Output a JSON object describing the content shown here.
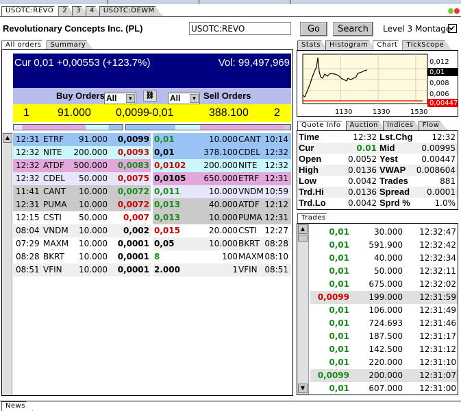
{
  "window_tabs": [
    "USOTC:REVO",
    "2",
    "3",
    "4",
    "USOTC:DEWM"
  ],
  "company": "Revolutionary Concepts Inc. (PL)",
  "symbol_input": "USOTC:REVO",
  "buttons": {
    "go": "Go",
    "search": "Search"
  },
  "level3": {
    "label": "Level 3 Montage",
    "checked": true
  },
  "left_tabs": [
    "All orders",
    "Summary"
  ],
  "header": {
    "cur": "Cur 0,01 +0,00553 (+123.7%)",
    "vol": "Vol: 99,497,969",
    "buy_label": "Buy Orders",
    "sell_label": "Sell Orders",
    "buy_filter": "All",
    "sell_filter": "All"
  },
  "best": {
    "buy_count": "1",
    "buy_size": "91.000",
    "buy_price": "0,0099",
    "sell_price": "-0,01",
    "sell_size": "388.100",
    "sell_count": "2"
  },
  "buy_orders": [
    {
      "time": "12:31",
      "mm": "ETRF",
      "size": "91.000",
      "price": "0,0099",
      "c": "k",
      "bg": "#99c3f5"
    },
    {
      "time": "12:32",
      "mm": "NITE",
      "size": "200.000",
      "price": "0,0093",
      "c": "r",
      "bg": "#c9f7fb"
    },
    {
      "time": "12:32",
      "mm": "ATDF",
      "size": "500.000",
      "price": "0,0083",
      "c": "g",
      "bg": "#e2a8dc"
    },
    {
      "time": "12:32",
      "mm": "CDEL",
      "size": "50.000",
      "price": "0,0075",
      "c": "r",
      "bg": "#e6e6fa"
    },
    {
      "time": "11:41",
      "mm": "CANT",
      "size": "10.000",
      "price": "0,0072",
      "c": "g",
      "bg": "#cacaca"
    },
    {
      "time": "12:31",
      "mm": "PUMA",
      "size": "10.000",
      "price": "0,0072",
      "c": "r",
      "bg": "#cacaca"
    },
    {
      "time": "12:15",
      "mm": "CSTI",
      "size": "50.000",
      "price": "0,007",
      "c": "r",
      "bg": "#ffffff"
    },
    {
      "time": "08:04",
      "mm": "VNDM",
      "size": "10.000",
      "price": "0,002",
      "c": "k",
      "bg": "#efefef"
    },
    {
      "time": "07:29",
      "mm": "MAXM",
      "size": "10.000",
      "price": "0,0001",
      "c": "k",
      "bg": "#ffffff"
    },
    {
      "time": "08:28",
      "mm": "BKRT",
      "size": "10.000",
      "price": "0,0001",
      "c": "k",
      "bg": "#ffffff"
    },
    {
      "time": "08:51",
      "mm": "VFIN",
      "size": "10.000",
      "price": "0,0001",
      "c": "k",
      "bg": "#efefef"
    }
  ],
  "sell_orders": [
    {
      "price": "0,01",
      "c": "g",
      "size": "10.000",
      "mm": "CANT",
      "time": "10:14",
      "bg": "#99c3f5"
    },
    {
      "price": "0,01",
      "c": "k",
      "size": "378.100",
      "mm": "CDEL",
      "time": "12:32",
      "bg": "#99c3f5"
    },
    {
      "price": "0,0102",
      "c": "r",
      "size": "200.000",
      "mm": "NITE",
      "time": "12:32",
      "bg": "#c9f7fb"
    },
    {
      "price": "0,0105",
      "c": "k",
      "size": "650.000",
      "mm": "ETRF",
      "time": "12:31",
      "bg": "#e2a8dc"
    },
    {
      "price": "0,011",
      "c": "g",
      "size": "10.000",
      "mm": "VNDM",
      "time": "10:59",
      "bg": "#e6e6fa"
    },
    {
      "price": "0,013",
      "c": "g",
      "size": "40.000",
      "mm": "ATDF",
      "time": "12:12",
      "bg": "#cacaca"
    },
    {
      "price": "0,013",
      "c": "g",
      "size": "10.000",
      "mm": "PUMA",
      "time": "12:31",
      "bg": "#cacaca"
    },
    {
      "price": "0,015",
      "c": "r",
      "size": "20.000",
      "mm": "CSTI",
      "time": "12:27",
      "bg": "#ffffff"
    },
    {
      "price": "0,05",
      "c": "k",
      "size": "10.000",
      "mm": "BKRT",
      "time": "08:28",
      "bg": "#efefef"
    },
    {
      "price": "8",
      "c": "g",
      "size": "100",
      "mm": "MAXM",
      "time": "08:10",
      "bg": "#ffffff"
    },
    {
      "price": "2.000",
      "c": "k",
      "size": "1",
      "mm": "VFIN",
      "time": "08:51",
      "bg": "#efefef"
    }
  ],
  "right_tabs": [
    "Stats",
    "Histogram",
    "Chart",
    "TickScope"
  ],
  "chart": {
    "y_ticks": [
      "0,012",
      "0,008",
      "0,006"
    ],
    "cur_label": "0,01",
    "yest_label": "0,00447",
    "x_ticks": [
      "1130",
      "1330",
      "1530"
    ]
  },
  "quote_tabs": [
    "Quote Info",
    "Auction",
    "Indices",
    "Flow"
  ],
  "quote": [
    {
      "l1": "Time",
      "v1": "12:32",
      "l2": "Lst.Chg",
      "v2": "12:32"
    },
    {
      "l1": "Cur",
      "v1": "0.01",
      "l2": "Mid",
      "v2": "0.00995"
    },
    {
      "l1": "Open",
      "v1": "0.0052",
      "l2": "Yest",
      "v2": "0.00447"
    },
    {
      "l1": "High",
      "v1": "0.0136",
      "l2": "VWAP",
      "v2": "0.008604"
    },
    {
      "l1": "Low",
      "v1": "0.0042",
      "l2": "Trades",
      "v2": "881"
    },
    {
      "l1": "Trd.Hi",
      "v1": "0.0136",
      "l2": "Spread",
      "v2": "0.0001"
    },
    {
      "l1": "Trd.Lo",
      "v1": "0.0042",
      "l2": "Sprd %",
      "v2": "1.0%"
    }
  ],
  "trades_tab": "Trades",
  "trades": [
    {
      "p": "0,01",
      "c": "g",
      "s": "30.000",
      "t": "12:32:47"
    },
    {
      "p": "0,01",
      "c": "g",
      "s": "591.900",
      "t": "12:32:42"
    },
    {
      "p": "0,01",
      "c": "g",
      "s": "40.000",
      "t": "12:32:34"
    },
    {
      "p": "0,01",
      "c": "g",
      "s": "50.000",
      "t": "12:32:11"
    },
    {
      "p": "0,01",
      "c": "g",
      "s": "675.000",
      "t": "12:32:02"
    },
    {
      "p": "0,0099",
      "c": "r",
      "s": "199.000",
      "t": "12:31:59",
      "hl": true
    },
    {
      "p": "0,01",
      "c": "g",
      "s": "106.000",
      "t": "12:31:49"
    },
    {
      "p": "0,01",
      "c": "g",
      "s": "724.693",
      "t": "12:31:46"
    },
    {
      "p": "0,01",
      "c": "g",
      "s": "187.500",
      "t": "12:31:17"
    },
    {
      "p": "0,01",
      "c": "g",
      "s": "142.500",
      "t": "12:31:12"
    },
    {
      "p": "0,01",
      "c": "g",
      "s": "220.000",
      "t": "12:31:10"
    },
    {
      "p": "0,0099",
      "c": "g",
      "s": "200.000",
      "t": "12:31:07",
      "hl": true
    },
    {
      "p": "0,01",
      "c": "g",
      "s": "607.000",
      "t": "12:31:00"
    }
  ],
  "bottom_tab": "News"
}
